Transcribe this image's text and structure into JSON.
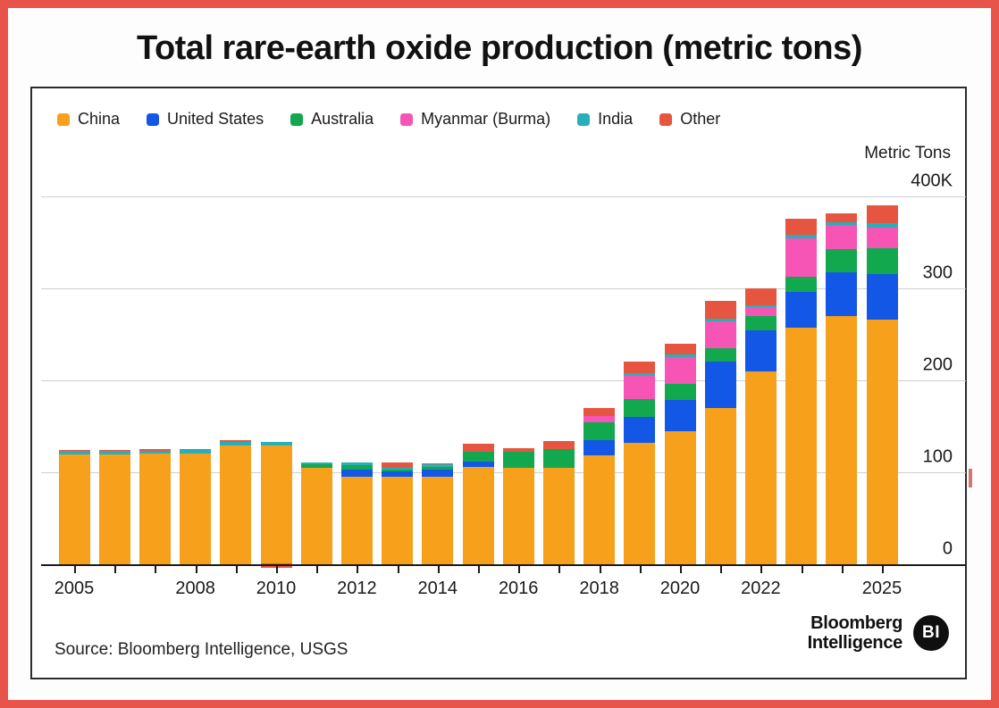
{
  "page": {
    "title": "Total rare-earth oxide production (metric tons)",
    "border_color": "#e8544a"
  },
  "legend": [
    {
      "name": "China",
      "color": "#f6a01b"
    },
    {
      "name": "United States",
      "color": "#1257e5"
    },
    {
      "name": "Australia",
      "color": "#12a84e"
    },
    {
      "name": "Myanmar (Burma)",
      "color": "#f655b5"
    },
    {
      "name": "India",
      "color": "#28b0ba"
    },
    {
      "name": "Other",
      "color": "#e65540"
    }
  ],
  "axis": {
    "unit_label": "Metric Tons",
    "y_ticks": [
      {
        "label": "400K",
        "value": 400
      },
      {
        "label": "300",
        "value": 300
      },
      {
        "label": "200",
        "value": 200
      },
      {
        "label": "100",
        "value": 100
      },
      {
        "label": "0",
        "value": 0
      }
    ],
    "labeled_years": [
      2005,
      2008,
      2010,
      2012,
      2014,
      2016,
      2018,
      2020,
      2022,
      2025
    ]
  },
  "chart_data": {
    "type": "bar",
    "stacked": true,
    "title": "Total rare-earth oxide production (metric tons)",
    "unit": "thousand metric tons",
    "ylabel": "Metric Tons",
    "ylim": [
      0,
      400
    ],
    "grid": "horizontal",
    "legend_position": "top-left",
    "years": [
      2005,
      2006,
      2007,
      2008,
      2009,
      2010,
      2011,
      2012,
      2013,
      2014,
      2015,
      2016,
      2017,
      2018,
      2019,
      2020,
      2021,
      2022,
      2023,
      2024,
      2025
    ],
    "series": [
      {
        "name": "China",
        "color": "#f6a01b",
        "values": [
          119,
          119,
          120,
          120,
          129,
          129,
          105,
          95,
          95,
          95,
          106,
          105,
          105,
          118,
          132,
          145,
          170,
          210,
          257,
          270,
          266
        ]
      },
      {
        "name": "United States",
        "color": "#1257e5",
        "values": [
          0,
          0,
          0,
          0,
          0,
          0,
          0,
          8,
          6,
          8,
          6,
          0,
          0,
          17,
          28,
          34,
          50,
          44,
          39,
          47,
          50
        ]
      },
      {
        "name": "Australia",
        "color": "#12a84e",
        "values": [
          0,
          0,
          0,
          0,
          0,
          0,
          4,
          5,
          2,
          3,
          10,
          17,
          20,
          19,
          20,
          17,
          15,
          16,
          17,
          26,
          28
        ]
      },
      {
        "name": "Myanmar (Burma)",
        "color": "#f655b5",
        "values": [
          0,
          0,
          0,
          0,
          0,
          0,
          0,
          0,
          0,
          0,
          0,
          0,
          0,
          7,
          25,
          29,
          29,
          10,
          41,
          26,
          22
        ]
      },
      {
        "name": "India",
        "color": "#28b0ba",
        "values": [
          4,
          4,
          3,
          4,
          4,
          4,
          2,
          3,
          2,
          3,
          0,
          0,
          0,
          0,
          3,
          3,
          3,
          2,
          4,
          3,
          5
        ]
      },
      {
        "name": "Other",
        "color": "#e65540",
        "values": [
          1,
          1,
          2,
          1,
          2,
          -4,
          0,
          0,
          6,
          1,
          9,
          4,
          9,
          9,
          12,
          12,
          19,
          18,
          18,
          10,
          19
        ]
      }
    ]
  },
  "footer": {
    "source": "Source: Bloomberg Intelligence, USGS",
    "logo_line1": "Bloomberg",
    "logo_line2": "Intelligence",
    "logo_badge": "BI"
  }
}
